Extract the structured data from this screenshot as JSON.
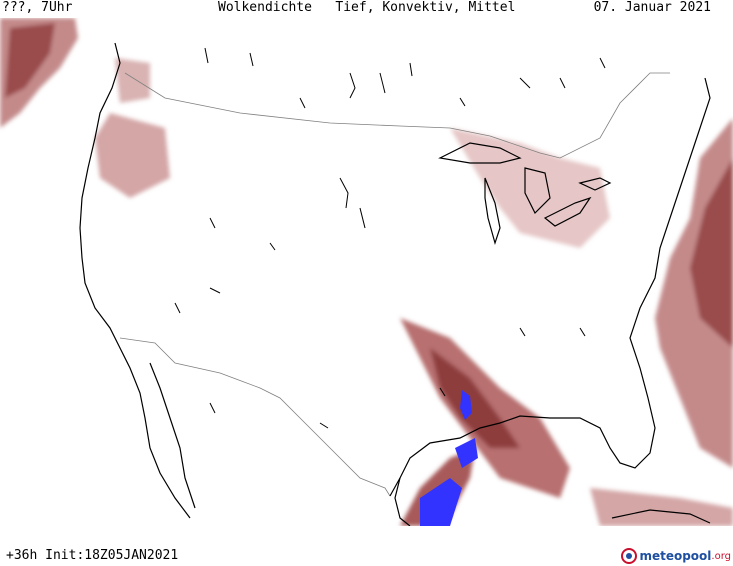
{
  "header": {
    "left": "???, 7Uhr",
    "title": "Wolkendichte   Tief, Konvektiv, Mittel",
    "date": "07. Januar 2021"
  },
  "footer": {
    "run_info": "+36h Init:18Z05JAN2021",
    "logo_name": "meteopool",
    "logo_tld": ".org"
  },
  "map": {
    "region": "USA",
    "colors": {
      "cloud_light": "#e8c8c8",
      "cloud_mid": "#c48a8a",
      "cloud_dark": "#8e3c3c",
      "convective": "#3333ff",
      "coast": "#000000",
      "border": "#808080"
    }
  }
}
